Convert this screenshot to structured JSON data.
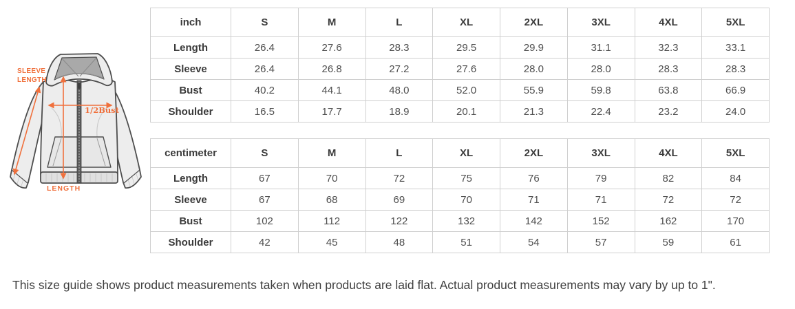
{
  "illustration": {
    "accent_color": "#F0703C",
    "labels": {
      "sleeve_line1": "SLEEVE",
      "sleeve_line2": "LENGTH",
      "half_bust": "1/2Bust",
      "length": "LENGTH"
    }
  },
  "tables": [
    {
      "unit_label": "inch",
      "columns": [
        "S",
        "M",
        "L",
        "XL",
        "2XL",
        "3XL",
        "4XL",
        "5XL"
      ],
      "rows": [
        {
          "label": "Length",
          "values": [
            "26.4",
            "27.6",
            "28.3",
            "29.5",
            "29.9",
            "31.1",
            "32.3",
            "33.1"
          ]
        },
        {
          "label": "Sleeve",
          "values": [
            "26.4",
            "26.8",
            "27.2",
            "27.6",
            "28.0",
            "28.0",
            "28.3",
            "28.3"
          ]
        },
        {
          "label": "Bust",
          "values": [
            "40.2",
            "44.1",
            "48.0",
            "52.0",
            "55.9",
            "59.8",
            "63.8",
            "66.9"
          ]
        },
        {
          "label": "Shoulder",
          "values": [
            "16.5",
            "17.7",
            "18.9",
            "20.1",
            "21.3",
            "22.4",
            "23.2",
            "24.0"
          ]
        }
      ]
    },
    {
      "unit_label": "centimeter",
      "columns": [
        "S",
        "M",
        "L",
        "XL",
        "2XL",
        "3XL",
        "4XL",
        "5XL"
      ],
      "rows": [
        {
          "label": "Length",
          "values": [
            "67",
            "70",
            "72",
            "75",
            "76",
            "79",
            "82",
            "84"
          ]
        },
        {
          "label": "Sleeve",
          "values": [
            "67",
            "68",
            "69",
            "70",
            "71",
            "71",
            "72",
            "72"
          ]
        },
        {
          "label": "Bust",
          "values": [
            "102",
            "112",
            "122",
            "132",
            "142",
            "152",
            "162",
            "170"
          ]
        },
        {
          "label": "Shoulder",
          "values": [
            "42",
            "45",
            "48",
            "51",
            "54",
            "57",
            "59",
            "61"
          ]
        }
      ]
    }
  ],
  "caption": "This size guide shows product measurements taken when products are laid flat. Actual product measurements may vary by up to 1\"."
}
